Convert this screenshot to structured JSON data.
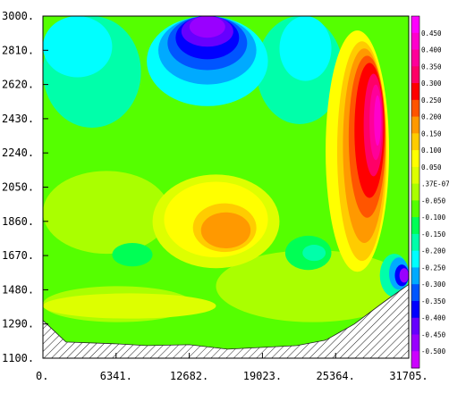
{
  "chart_data": {
    "type": "heatmap",
    "title": "",
    "xlabel": "",
    "ylabel": "",
    "xlim": [
      0,
      31705
    ],
    "ylim": [
      1100,
      3000
    ],
    "x_tick_labels": [
      "0.",
      "6341.",
      "12682.",
      "19023.",
      "25364.",
      "31705."
    ],
    "y_tick_labels": [
      "3000.",
      "2810.",
      "2620.",
      "2430.",
      "2240.",
      "2050.",
      "1860.",
      "1670.",
      "1480.",
      "1290.",
      "1100."
    ],
    "colorbar": {
      "labels": [
        "0.450",
        "0.400",
        "0.350",
        "0.300",
        "0.250",
        "0.200",
        "0.150",
        "0.100",
        "0.050",
        ".37E-07",
        "-0.050",
        "-0.100",
        "-0.150",
        "-0.200",
        "-0.250",
        "-0.300",
        "-0.350",
        "-0.400",
        "-0.450",
        "-0.500"
      ],
      "colors": [
        "#ff00ff",
        "#ff00cc",
        "#ff0099",
        "#ff0066",
        "#ff0000",
        "#ff5500",
        "#ff9900",
        "#ffcc00",
        "#ffff00",
        "#ddff00",
        "#aaff00",
        "#55ff00",
        "#00ff55",
        "#00ffaa",
        "#00ffff",
        "#00aaff",
        "#0055ff",
        "#0000ff",
        "#6600ff",
        "#9900ff",
        "#cc00ff"
      ]
    },
    "regions": [
      {
        "level": "-0.100",
        "color": "#55ff00",
        "x": [
          0,
          31705
        ],
        "y": [
          1100,
          3000
        ]
      },
      {
        "level": "-0.200",
        "color": "#00ffaa",
        "x": [
          0,
          8500
        ],
        "y": [
          2380,
          3000
        ]
      },
      {
        "level": "-0.250",
        "color": "#00ffff",
        "x": [
          0,
          6000
        ],
        "y": [
          2660,
          3000
        ]
      },
      {
        "level": "-0.200",
        "color": "#00ffaa",
        "x": [
          18500,
          26000
        ],
        "y": [
          2400,
          3000
        ]
      },
      {
        "level": "-0.250",
        "color": "#00ffff",
        "x": [
          20500,
          25000
        ],
        "y": [
          2640,
          3000
        ]
      },
      {
        "level": "-0.050",
        "color": "#aaff00",
        "x": [
          0,
          11000
        ],
        "y": [
          1680,
          2140
        ]
      },
      {
        "level": "-0.050",
        "color": "#aaff00",
        "x": [
          15000,
          31705
        ],
        "y": [
          1300,
          1700
        ]
      },
      {
        "level": "-0.050",
        "color": "#aaff00",
        "x": [
          0,
          13000
        ],
        "y": [
          1300,
          1500
        ]
      },
      {
        "level": ".37E-07",
        "color": "#ddff00",
        "x": [
          9500,
          20500
        ],
        "y": [
          1600,
          2120
        ]
      },
      {
        "level": ".37E-07",
        "color": "#ddff00",
        "x": [
          0,
          15000
        ],
        "y": [
          1320,
          1460
        ]
      },
      {
        "level": "0.050",
        "color": "#ffff00",
        "x": [
          10500,
          19500
        ],
        "y": [
          1660,
          2080
        ]
      },
      {
        "level": "0.100",
        "color": "#ffcc00",
        "x": [
          13000,
          18500
        ],
        "y": [
          1690,
          1960
        ]
      },
      {
        "level": "0.150",
        "color": "#ff9900",
        "x": [
          13700,
          18000
        ],
        "y": [
          1710,
          1910
        ]
      },
      {
        "level": "-0.150",
        "color": "#00ff55",
        "x": [
          6000,
          9500
        ],
        "y": [
          1610,
          1740
        ]
      },
      {
        "level": "-0.150",
        "color": "#00ff55",
        "x": [
          21000,
          25000
        ],
        "y": [
          1590,
          1780
        ]
      },
      {
        "level": "-0.200",
        "color": "#00ffaa",
        "x": [
          22500,
          24500
        ],
        "y": [
          1640,
          1730
        ]
      },
      {
        "level": "0.050",
        "color": "#ffff00",
        "x": [
          24500,
          30000
        ],
        "y": [
          1580,
          2920
        ]
      },
      {
        "level": "0.100",
        "color": "#ffcc00",
        "x": [
          25500,
          29800
        ],
        "y": [
          1640,
          2860
        ]
      },
      {
        "level": "0.150",
        "color": "#ff9900",
        "x": [
          26000,
          29700
        ],
        "y": [
          1740,
          2820
        ]
      },
      {
        "level": "0.200",
        "color": "#ff5500",
        "x": [
          26500,
          29700
        ],
        "y": [
          1880,
          2780
        ]
      },
      {
        "level": "0.250",
        "color": "#ff0000",
        "x": [
          27000,
          29600
        ],
        "y": [
          1990,
          2740
        ]
      },
      {
        "level": "0.300",
        "color": "#ff0066",
        "x": [
          27800,
          29500
        ],
        "y": [
          2110,
          2680
        ]
      },
      {
        "level": "0.350",
        "color": "#ff0099",
        "x": [
          28300,
          29400
        ],
        "y": [
          2200,
          2620
        ]
      },
      {
        "level": "0.400",
        "color": "#ff00cc",
        "x": [
          28700,
          29300
        ],
        "y": [
          2280,
          2560
        ]
      },
      {
        "level": "-0.250",
        "color": "#00ffff",
        "x": [
          9000,
          19500
        ],
        "y": [
          2500,
          3000
        ]
      },
      {
        "level": "-0.300",
        "color": "#00aaff",
        "x": [
          10000,
          18500
        ],
        "y": [
          2620,
          3000
        ]
      },
      {
        "level": "-0.350",
        "color": "#0055ff",
        "x": [
          10800,
          17700
        ],
        "y": [
          2700,
          3000
        ]
      },
      {
        "level": "-0.400",
        "color": "#0000ff",
        "x": [
          11500,
          17000
        ],
        "y": [
          2760,
          3000
        ]
      },
      {
        "level": "-0.450",
        "color": "#6600ff",
        "x": [
          12000,
          16500
        ],
        "y": [
          2830,
          3000
        ]
      },
      {
        "level": "-0.500",
        "color": "#9900ff",
        "x": [
          12700,
          15800
        ],
        "y": [
          2880,
          3000
        ]
      },
      {
        "level": "-0.200",
        "color": "#00ffaa",
        "x": [
          29200,
          31705
        ],
        "y": [
          1440,
          1680
        ]
      },
      {
        "level": "-0.300",
        "color": "#00aaff",
        "x": [
          30000,
          31705
        ],
        "y": [
          1480,
          1660
        ]
      },
      {
        "level": "-0.400",
        "color": "#0000ff",
        "x": [
          30500,
          31705
        ],
        "y": [
          1500,
          1620
        ]
      },
      {
        "level": "-0.500",
        "color": "#9900ff",
        "x": [
          30900,
          31705
        ],
        "y": [
          1520,
          1600
        ]
      }
    ],
    "terrain": [
      [
        0,
        1310
      ],
      [
        2000,
        1190
      ],
      [
        6341,
        1180
      ],
      [
        9000,
        1170
      ],
      [
        12682,
        1175
      ],
      [
        16000,
        1150
      ],
      [
        19023,
        1160
      ],
      [
        22000,
        1170
      ],
      [
        24500,
        1200
      ],
      [
        27000,
        1290
      ],
      [
        29500,
        1410
      ],
      [
        31705,
        1510
      ]
    ]
  }
}
